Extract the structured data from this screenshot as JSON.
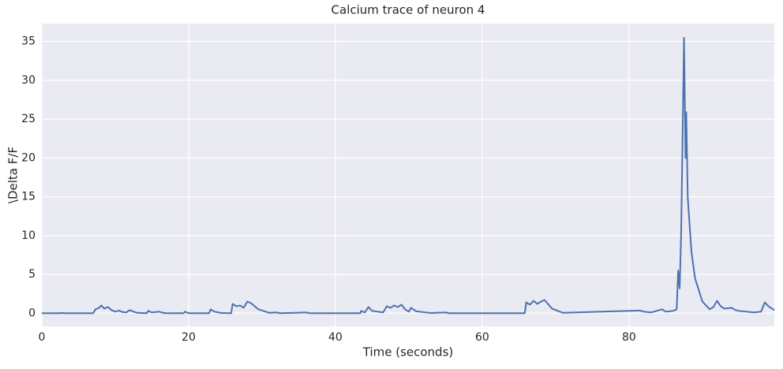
{
  "chart_data": {
    "type": "line",
    "title": "Calcium trace of neuron 4",
    "x_label": "Time (seconds)",
    "y_label": "\\Delta F/F",
    "x": [
      0,
      2.5,
      2.7,
      3,
      7,
      7.3,
      7.8,
      8.1,
      8.5,
      9,
      9.5,
      10,
      10.5,
      11,
      11.5,
      12,
      12.5,
      13,
      14.3,
      14.5,
      15,
      16,
      16.5,
      17,
      19.3,
      19.5,
      20,
      22.8,
      23,
      23.5,
      24.5,
      25.8,
      26,
      26.5,
      27,
      27.5,
      28,
      28.5,
      29.5,
      31,
      32,
      32.5,
      36,
      36.5,
      43.4,
      43.5,
      44,
      44.5,
      45,
      46.5,
      47,
      47.5,
      48,
      48.5,
      49,
      49.5,
      50,
      50.3,
      51,
      53,
      55,
      55.5,
      65.8,
      66,
      66.5,
      67,
      67.5,
      68,
      68.5,
      69.5,
      71,
      81.5,
      82,
      83,
      84.5,
      85,
      86,
      86.5,
      86.7,
      86.9,
      87.1,
      87.5,
      87.7,
      87.8,
      88,
      88.5,
      89,
      90,
      91,
      91.5,
      92,
      92.5,
      93,
      94,
      94.5,
      95,
      97,
      98,
      98.5,
      99,
      99.8
    ],
    "series": [
      {
        "name": "neuron 4",
        "color": "#4c72b0",
        "values": [
          0,
          0,
          0.05,
          0,
          0,
          0.5,
          0.7,
          1.0,
          0.6,
          0.8,
          0.4,
          0.2,
          0.35,
          0.15,
          0.1,
          0.4,
          0.2,
          0.05,
          0,
          0.3,
          0.1,
          0.2,
          0.05,
          0,
          0,
          0.2,
          0,
          0,
          0.5,
          0.2,
          0.02,
          0,
          1.2,
          0.9,
          1.0,
          0.7,
          1.5,
          1.3,
          0.5,
          0.05,
          0.1,
          0,
          0.1,
          0,
          0,
          0.3,
          0.1,
          0.8,
          0.3,
          0.1,
          0.9,
          0.7,
          1.0,
          0.8,
          1.1,
          0.5,
          0.2,
          0.7,
          0.25,
          0.02,
          0.1,
          0,
          0,
          1.4,
          1.1,
          1.6,
          1.2,
          1.5,
          1.7,
          0.6,
          0.05,
          0.35,
          0.2,
          0.1,
          0.5,
          0.2,
          0.3,
          0.5,
          5.5,
          3.2,
          10,
          35.5,
          20,
          25.9,
          15,
          8,
          4.5,
          1.5,
          0.5,
          0.8,
          1.6,
          0.9,
          0.6,
          0.7,
          0.4,
          0.3,
          0.1,
          0.2,
          1.4,
          0.9,
          0.4
        ]
      }
    ],
    "xlim": [
      0,
      99.8
    ],
    "ylim": [
      -1.7,
      37.3
    ],
    "xticks": [
      0,
      20,
      40,
      60,
      80
    ],
    "yticks": [
      0,
      5,
      10,
      15,
      20,
      25,
      30,
      35
    ],
    "grid": true
  }
}
